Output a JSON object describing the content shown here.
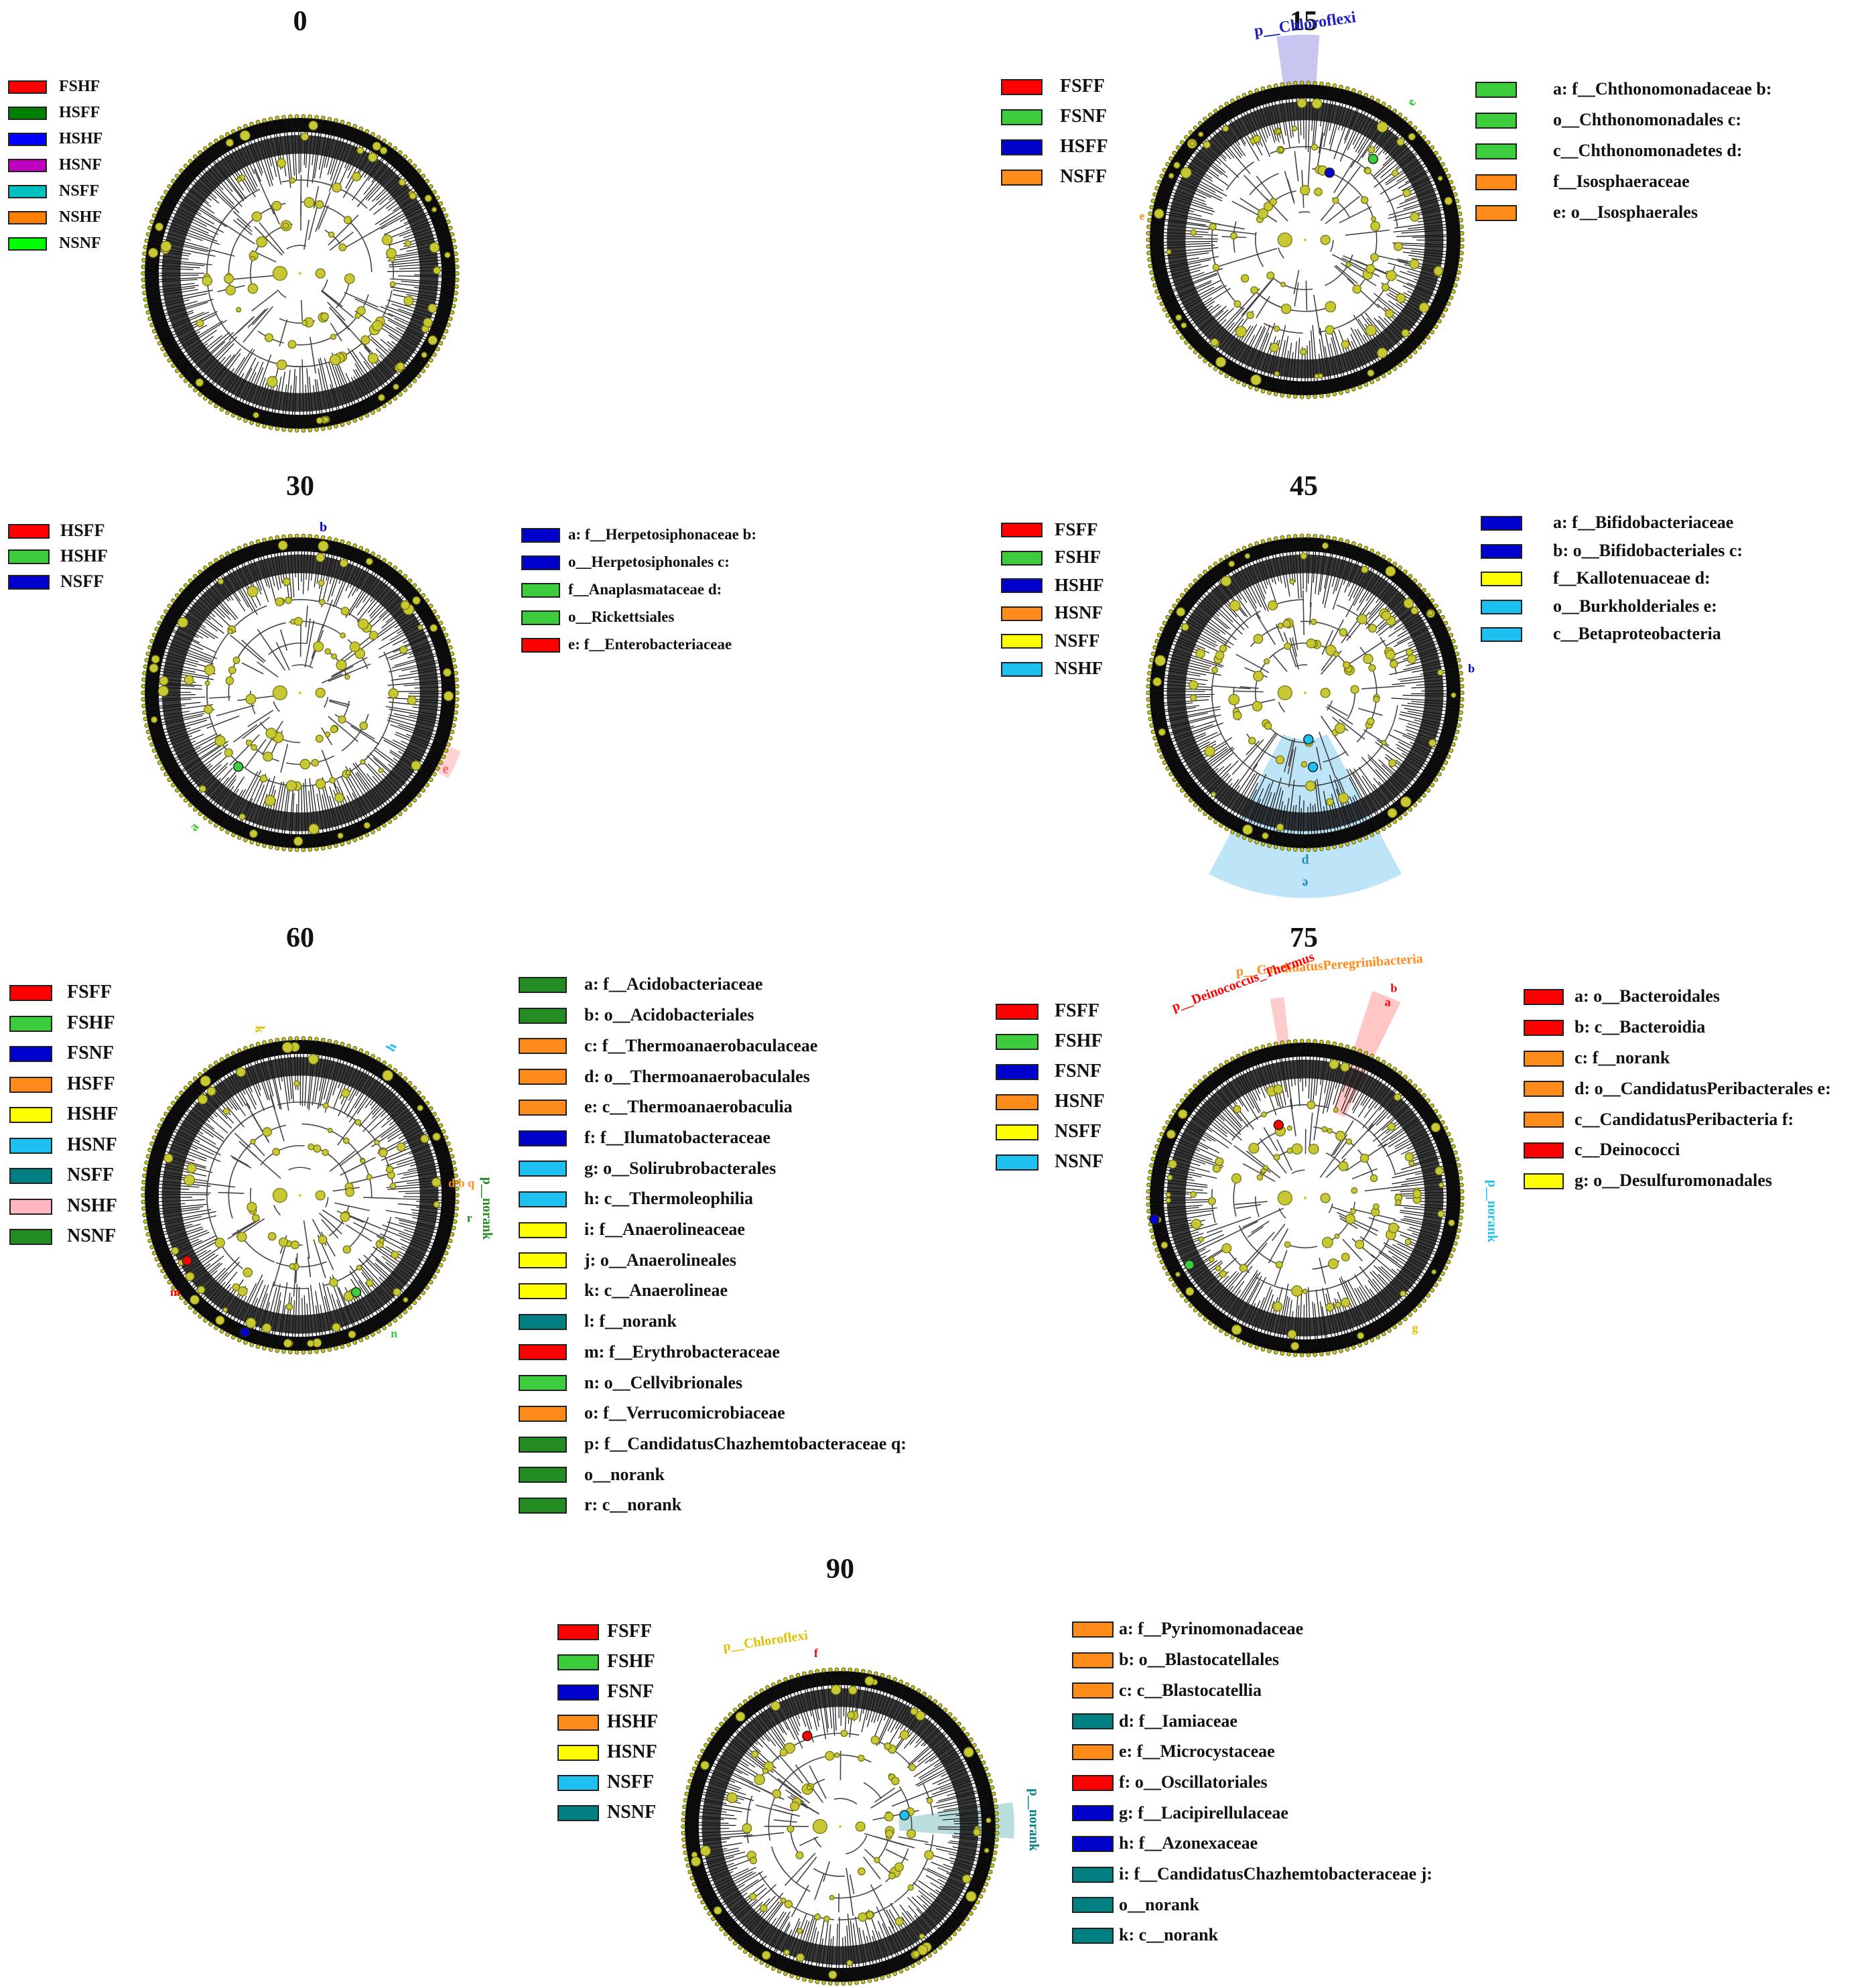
{
  "panels": [
    {
      "title": "0",
      "groups": [
        {
          "label": "FSHF",
          "color": "#ff0000"
        },
        {
          "label": "HSFF",
          "color": "#008000"
        },
        {
          "label": "HSHF",
          "color": "#0000ff"
        },
        {
          "label": "HSNF",
          "color": "#c000c0"
        },
        {
          "label": "NSFF",
          "color": "#00c0c0"
        },
        {
          "label": "NSHF",
          "color": "#ff8000"
        },
        {
          "label": "NSNF",
          "color": "#00ff00"
        }
      ],
      "taxa": [],
      "annotations": []
    },
    {
      "title": "15",
      "groups": [
        {
          "label": "FSFF",
          "color": "#ff0000"
        },
        {
          "label": "FSNF",
          "color": "#3ccc3c"
        },
        {
          "label": "HSFF",
          "color": "#0000cc"
        },
        {
          "label": "NSFF",
          "color": "#ff8c1a"
        }
      ],
      "taxa": [
        {
          "text": "a: f__Chthonomonadaceae b:",
          "color": "#3ccc3c"
        },
        {
          "text": "o__Chthonomonadales c:",
          "color": "#3ccc3c"
        },
        {
          "text": "c__Chthonomonadetes d:",
          "color": "#3ccc3c"
        },
        {
          "text": "f__Isosphaeraceae",
          "color": "#ff8c1a"
        },
        {
          "text": "e: o__Isosphaerales",
          "color": "#ff8c1a"
        }
      ],
      "annotations": [
        {
          "text": "p__Chloroflexi",
          "color": "#2020c0"
        },
        {
          "text": "e",
          "color": "#3ccc3c"
        },
        {
          "text": "e",
          "color": "#ff8c1a"
        }
      ]
    },
    {
      "title": "30",
      "groups": [
        {
          "label": "HSFF",
          "color": "#ff0000"
        },
        {
          "label": "HSHF",
          "color": "#3ccc3c"
        },
        {
          "label": "NSFF",
          "color": "#0000cc"
        }
      ],
      "taxa": [
        {
          "text": "a: f__Herpetosiphonaceae b:",
          "color": "#0000cc"
        },
        {
          "text": "o__Herpetosiphonales c:",
          "color": "#0000cc"
        },
        {
          "text": "f__Anaplasmataceae d:",
          "color": "#3ccc3c"
        },
        {
          "text": "o__Rickettsiales",
          "color": "#3ccc3c"
        },
        {
          "text": "e: f__Enterobacteriaceae",
          "color": "#ff0000"
        }
      ],
      "annotations": [
        {
          "text": "b",
          "color": "#0000cc"
        },
        {
          "text": "a",
          "color": "#3ccc3c"
        },
        {
          "text": "e",
          "color": "#ff6060"
        }
      ]
    },
    {
      "title": "45",
      "groups": [
        {
          "label": "FSFF",
          "color": "#ff0000"
        },
        {
          "label": "FSHF",
          "color": "#3ccc3c"
        },
        {
          "label": "HSHF",
          "color": "#0000cc"
        },
        {
          "label": "HSNF",
          "color": "#ff8c1a"
        },
        {
          "label": "NSFF",
          "color": "#ffff00"
        },
        {
          "label": "NSHF",
          "color": "#1ec0f0"
        }
      ],
      "taxa": [
        {
          "text": "a: f__Bifidobacteriaceae",
          "color": "#0000cc"
        },
        {
          "text": "b: o__Bifidobacteriales c:",
          "color": "#0000cc"
        },
        {
          "text": "f__Kallotenuaceae d:",
          "color": "#ffff00"
        },
        {
          "text": "o__Burkholderiales e:",
          "color": "#1ec0f0"
        },
        {
          "text": "c__Betaproteobacteria",
          "color": "#1ec0f0"
        }
      ],
      "annotations": [
        {
          "text": "d",
          "color": "#1e90c0"
        },
        {
          "text": "e",
          "color": "#1e90c0"
        },
        {
          "text": "b",
          "color": "#0000cc"
        }
      ]
    },
    {
      "title": "60",
      "groups": [
        {
          "label": "FSFF",
          "color": "#ff0000"
        },
        {
          "label": "FSHF",
          "color": "#3ccc3c"
        },
        {
          "label": "FSNF",
          "color": "#0000cc"
        },
        {
          "label": "HSFF",
          "color": "#ff8c1a"
        },
        {
          "label": "HSHF",
          "color": "#ffff00"
        },
        {
          "label": "HSNF",
          "color": "#1ec0f0"
        },
        {
          "label": "NSFF",
          "color": "#008080"
        },
        {
          "label": "NSHF",
          "color": "#ffb6c1"
        },
        {
          "label": "NSNF",
          "color": "#228b22"
        }
      ],
      "taxa": [
        {
          "text": "a: f__Acidobacteriaceae",
          "color": "#228b22"
        },
        {
          "text": "b: o__Acidobacteriales",
          "color": "#228b22"
        },
        {
          "text": "c: f__Thermoanaerobaculaceae",
          "color": "#ff8c1a"
        },
        {
          "text": "d: o__Thermoanaerobaculales",
          "color": "#ff8c1a"
        },
        {
          "text": "e: c__Thermoanaerobaculia",
          "color": "#ff8c1a"
        },
        {
          "text": "f: f__Ilumatobacteraceae",
          "color": "#0000cc"
        },
        {
          "text": "g: o__Solirubrobacterales",
          "color": "#1ec0f0"
        },
        {
          "text": "h: c__Thermoleophilia",
          "color": "#1ec0f0"
        },
        {
          "text": "i: f__Anaerolineaceae",
          "color": "#ffff00"
        },
        {
          "text": "j: o__Anaerolineales",
          "color": "#ffff00"
        },
        {
          "text": "k: c__Anaerolineae",
          "color": "#ffff00"
        },
        {
          "text": "l: f__norank",
          "color": "#008080"
        },
        {
          "text": "m: f__Erythrobacteraceae",
          "color": "#ff0000"
        },
        {
          "text": "n: o__Cellvibrionales",
          "color": "#3ccc3c"
        },
        {
          "text": "o: f__Verrucomicrobiaceae",
          "color": "#ff8c1a"
        },
        {
          "text": "p: f__CandidatusChazhemtobacteraceae q:",
          "color": "#228b22"
        },
        {
          "text": "o__norank",
          "color": "#228b22"
        },
        {
          "text": "r: c__norank",
          "color": "#228b22"
        }
      ],
      "annotations": [
        {
          "text": "k",
          "color": "#e0c000"
        },
        {
          "text": "h",
          "color": "#1ec0f0"
        },
        {
          "text": "p__norank",
          "color": "#228b22"
        },
        {
          "text": "d b q",
          "color": "#ff8c1a"
        },
        {
          "text": "r",
          "color": "#228b22"
        },
        {
          "text": "m",
          "color": "#ff0000"
        },
        {
          "text": "n",
          "color": "#3ccc3c"
        }
      ]
    },
    {
      "title": "75",
      "groups": [
        {
          "label": "FSFF",
          "color": "#ff0000"
        },
        {
          "label": "FSHF",
          "color": "#3ccc3c"
        },
        {
          "label": "FSNF",
          "color": "#0000cc"
        },
        {
          "label": "HSNF",
          "color": "#ff8c1a"
        },
        {
          "label": "NSFF",
          "color": "#ffff00"
        },
        {
          "label": "NSNF",
          "color": "#1ec0f0"
        }
      ],
      "taxa": [
        {
          "text": "a: o__Bacteroidales",
          "color": "#ff0000"
        },
        {
          "text": "b: c__Bacteroidia",
          "color": "#ff0000"
        },
        {
          "text": "c: f__norank",
          "color": "#ff8c1a"
        },
        {
          "text": "d: o__CandidatusPeribacterales e:",
          "color": "#ff8c1a"
        },
        {
          "text": "c__CandidatusPeribacteria f:",
          "color": "#ff8c1a"
        },
        {
          "text": "c__Deinococci",
          "color": "#ff0000"
        },
        {
          "text": "g: o__Desulfuromonadales",
          "color": "#ffff00"
        }
      ],
      "annotations": [
        {
          "text": "p__CandidatusPeregrinibacteria",
          "color": "#ff8c1a"
        },
        {
          "text": "p__Deinococcus_Thermus",
          "color": "#ff0000"
        },
        {
          "text": "b",
          "color": "#ff0000"
        },
        {
          "text": "a",
          "color": "#ff0000"
        },
        {
          "text": "p__norank",
          "color": "#1ec0f0"
        },
        {
          "text": "g",
          "color": "#e0c000"
        }
      ]
    },
    {
      "title": "90",
      "groups": [
        {
          "label": "FSFF",
          "color": "#ff0000"
        },
        {
          "label": "FSHF",
          "color": "#3ccc3c"
        },
        {
          "label": "FSNF",
          "color": "#0000cc"
        },
        {
          "label": "HSHF",
          "color": "#ff8c1a"
        },
        {
          "label": "HSNF",
          "color": "#ffff00"
        },
        {
          "label": "NSFF",
          "color": "#1ec0f0"
        },
        {
          "label": "NSNF",
          "color": "#008080"
        }
      ],
      "taxa": [
        {
          "text": "a: f__Pyrinomonadaceae",
          "color": "#ff8c1a"
        },
        {
          "text": "b: o__Blastocatellales",
          "color": "#ff8c1a"
        },
        {
          "text": "c: c__Blastocatellia",
          "color": "#ff8c1a"
        },
        {
          "text": "d: f__Iamiaceae",
          "color": "#008080"
        },
        {
          "text": "e: f__Microcystaceae",
          "color": "#ff8c1a"
        },
        {
          "text": "f: o__Oscillatoriales",
          "color": "#ff0000"
        },
        {
          "text": "g: f__Lacipirellulaceae",
          "color": "#0000cc"
        },
        {
          "text": "h: f__Azonexaceae",
          "color": "#0000cc"
        },
        {
          "text": "i: f__CandidatusChazhemtobacteraceae j:",
          "color": "#008080"
        },
        {
          "text": "o__norank",
          "color": "#008080"
        },
        {
          "text": "k: c__norank",
          "color": "#008080"
        }
      ],
      "annotations": [
        {
          "text": "p__Chloroflexi",
          "color": "#e0c000"
        },
        {
          "text": "f",
          "color": "#ff0000"
        },
        {
          "text": "p__norank",
          "color": "#008080"
        }
      ]
    }
  ]
}
